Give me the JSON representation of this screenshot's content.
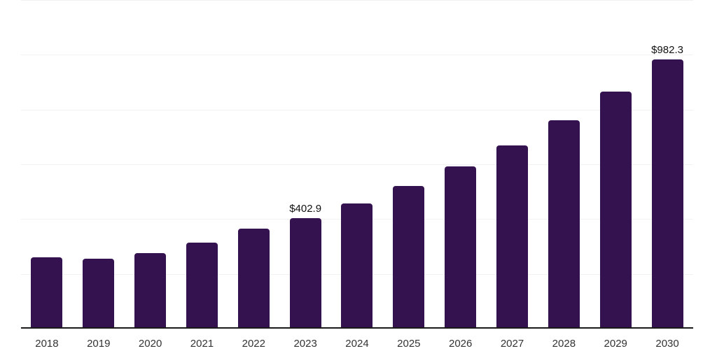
{
  "chart_data": {
    "type": "bar",
    "categories": [
      "2018",
      "2019",
      "2020",
      "2021",
      "2022",
      "2023",
      "2024",
      "2025",
      "2026",
      "2027",
      "2028",
      "2029",
      "2030"
    ],
    "values": [
      261,
      256,
      277,
      313,
      364,
      402.9,
      456,
      521,
      592,
      669,
      761,
      866,
      982.3
    ],
    "data_labels": {
      "2023": "$402.9",
      "2030": "$982.3"
    },
    "ylim": [
      0,
      1200
    ],
    "gridline_step": 200,
    "grid": true,
    "legend": false,
    "y_axis_tick_labels_visible": false,
    "bar_color": "#341250",
    "axis_line_color": "#1a1a1a",
    "gridline_color": "#f2f2f2",
    "data_label_color": "#111111",
    "x_tick_label_color": "#333333"
  }
}
